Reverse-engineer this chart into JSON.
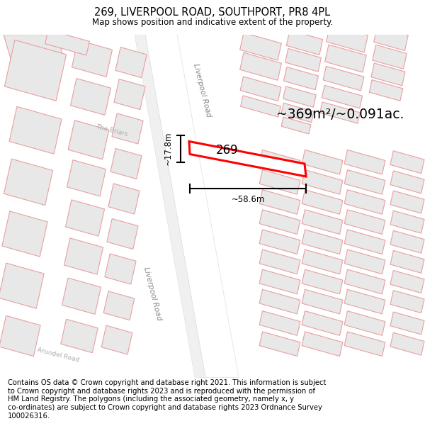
{
  "title": "269, LIVERPOOL ROAD, SOUTHPORT, PR8 4PL",
  "subtitle": "Map shows position and indicative extent of the property.",
  "footer": "Contains OS data © Crown copyright and database right 2021. This information is subject\nto Crown copyright and database rights 2023 and is reproduced with the permission of\nHM Land Registry. The polygons (including the associated geometry, namely x, y\nco-ordinates) are subject to Crown copyright and database rights 2023 Ordnance Survey\n100026316.",
  "area_label": "~369m²/~0.091ac.",
  "property_label": "269",
  "width_label": "~58.6m",
  "height_label": "~17.8m",
  "road_label_diag": "Liverpool Road",
  "street_label_briars": "The Briars",
  "street_label_arundel": "Arundel Road",
  "map_bg": "#f7f7f7",
  "building_fill": "#e8e8e8",
  "building_edge": "#e8a0a0",
  "road_fill": "#ffffff",
  "road_edge": "#dddddd",
  "property_fill": "#ffffff",
  "property_edge": "#ff0000",
  "title_fontsize": 10.5,
  "subtitle_fontsize": 8.5,
  "footer_fontsize": 7.2,
  "road_label_color": "#888888",
  "street_label_color": "#aaaaaa"
}
